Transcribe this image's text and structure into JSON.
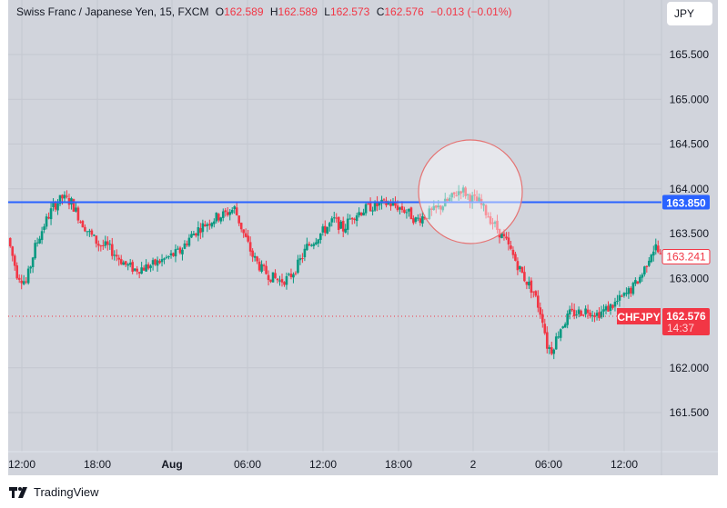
{
  "legend": {
    "symbol_name": "Swiss Franc / Japanese Yen, 15, FXCM",
    "open_label": "O",
    "open": "162.589",
    "high_label": "H",
    "high": "162.589",
    "low_label": "L",
    "low": "162.573",
    "close_label": "C",
    "close": "162.576",
    "change": "−0.013 (−0.01%)"
  },
  "currency_button": "JPY",
  "branding": "TradingView",
  "colors": {
    "background": "#d1d4dc",
    "up": "#089981",
    "down": "#f23645",
    "horizontal_line": "#2962ff",
    "circle_stroke": "#e57373",
    "grid": "#c4c7d0"
  },
  "price_axis": {
    "ticks": [
      "165.500",
      "165.000",
      "164.500",
      "164.000",
      "163.500",
      "163.000",
      "162.000",
      "161.500"
    ],
    "horizontal_line_label": "163.850",
    "prev_marker": "163.241",
    "last_price": "162.576",
    "countdown": "14:37",
    "symbol_tag": "CHFJPY"
  },
  "time_axis": {
    "ticks": [
      "12:00",
      "18:00",
      "Aug",
      "06:00",
      "12:00",
      "18:00",
      "2",
      "06:00",
      "12:00"
    ]
  },
  "chart_data": {
    "type": "candlestick",
    "title": "Swiss Franc / Japanese Yen, 15, FXCM",
    "symbol": "CHFJPY",
    "interval": "15",
    "xlabel": "",
    "ylabel": "JPY",
    "ylim": [
      161.1,
      166.1
    ],
    "y_ticks": [
      161.5,
      162.0,
      163.0,
      163.5,
      164.0,
      164.5,
      165.0,
      165.5
    ],
    "x_ticks": [
      "12:00",
      "18:00",
      "Aug",
      "06:00",
      "12:00",
      "18:00",
      "2",
      "06:00",
      "12:00"
    ],
    "horizontal_line": 163.85,
    "annotations": [
      {
        "type": "circle",
        "center_time": "2 ~01:30",
        "center_price": 163.85,
        "note": "highlighted area around breakout/rejection at 163.850"
      },
      {
        "type": "price_label",
        "value": 163.241
      },
      {
        "type": "last_price",
        "value": 162.576,
        "countdown": "14:37"
      }
    ],
    "grid": true,
    "path_points": [
      [
        0,
        163.45
      ],
      [
        4,
        163.05
      ],
      [
        8,
        162.95
      ],
      [
        12,
        163.35
      ],
      [
        16,
        163.6
      ],
      [
        20,
        163.8
      ],
      [
        24,
        163.9
      ],
      [
        28,
        163.85
      ],
      [
        32,
        163.65
      ],
      [
        36,
        163.5
      ],
      [
        40,
        163.38
      ],
      [
        44,
        163.35
      ],
      [
        48,
        163.25
      ],
      [
        52,
        163.15
      ],
      [
        56,
        163.1
      ],
      [
        60,
        163.12
      ],
      [
        64,
        163.15
      ],
      [
        68,
        163.2
      ],
      [
        72,
        163.25
      ],
      [
        76,
        163.3
      ],
      [
        80,
        163.45
      ],
      [
        84,
        163.55
      ],
      [
        88,
        163.62
      ],
      [
        92,
        163.68
      ],
      [
        96,
        163.72
      ],
      [
        100,
        163.78
      ],
      [
        104,
        163.5
      ],
      [
        108,
        163.25
      ],
      [
        112,
        163.1
      ],
      [
        116,
        163.02
      ],
      [
        120,
        162.97
      ],
      [
        124,
        163.0
      ],
      [
        128,
        163.15
      ],
      [
        132,
        163.35
      ],
      [
        136,
        163.45
      ],
      [
        140,
        163.55
      ],
      [
        144,
        163.65
      ],
      [
        148,
        163.55
      ],
      [
        152,
        163.7
      ],
      [
        156,
        163.75
      ],
      [
        160,
        163.8
      ],
      [
        164,
        163.82
      ],
      [
        168,
        163.84
      ],
      [
        172,
        163.8
      ],
      [
        176,
        163.75
      ],
      [
        180,
        163.65
      ],
      [
        184,
        163.7
      ],
      [
        188,
        163.75
      ],
      [
        192,
        163.82
      ],
      [
        196,
        163.9
      ],
      [
        200,
        164.0
      ],
      [
        204,
        163.9
      ],
      [
        208,
        163.85
      ],
      [
        212,
        163.7
      ],
      [
        216,
        163.55
      ],
      [
        220,
        163.4
      ],
      [
        224,
        163.2
      ],
      [
        228,
        163.0
      ],
      [
        232,
        162.85
      ],
      [
        236,
        162.55
      ],
      [
        238,
        162.25
      ],
      [
        240,
        162.2
      ],
      [
        244,
        162.45
      ],
      [
        248,
        162.6
      ],
      [
        252,
        162.62
      ],
      [
        256,
        162.65
      ],
      [
        260,
        162.6
      ],
      [
        264,
        162.65
      ],
      [
        268,
        162.72
      ],
      [
        272,
        162.8
      ],
      [
        276,
        162.9
      ],
      [
        280,
        163.05
      ],
      [
        284,
        163.3
      ],
      [
        286,
        163.35
      ],
      [
        288,
        163.24
      ]
    ]
  }
}
